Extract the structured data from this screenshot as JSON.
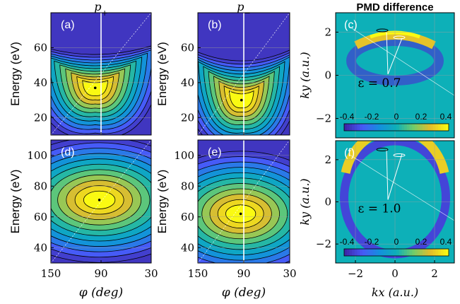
{
  "chart_data": [
    {
      "panel": "(a)",
      "type": "heatmap",
      "column_title": "p+",
      "xlabel": "",
      "ylabel": "Energy (eV)",
      "x_ticks": [
        "150",
        "90",
        "30"
      ],
      "y_ticks": [
        "20",
        "40",
        "60"
      ],
      "xlim": [
        150,
        30
      ],
      "ylim": [
        10,
        80
      ],
      "marker": {
        "phi": 97,
        "energy": 37
      },
      "vertical_line_phi": 90,
      "colormap": "parula",
      "contours": true
    },
    {
      "panel": "(b)",
      "type": "heatmap",
      "column_title": "p−",
      "xlabel": "",
      "ylabel": "Energy (eV)",
      "x_ticks": [
        "150",
        "90",
        "30"
      ],
      "y_ticks": [
        "20",
        "40",
        "60"
      ],
      "xlim": [
        150,
        30
      ],
      "ylim": [
        10,
        80
      ],
      "marker": {
        "phi": 93,
        "energy": 30
      },
      "vertical_line_phi": 90,
      "colormap": "parula",
      "contours": true
    },
    {
      "panel": "(c)",
      "type": "heatmap",
      "column_title": "PMD difference",
      "xlabel": "",
      "ylabel": "ky (a.u.)",
      "y_ticks": [
        "2",
        "0",
        "-2"
      ],
      "ylim": [
        -2.9,
        2.9
      ],
      "xlim": [
        -3,
        3
      ],
      "annotation": "ε = 0.7",
      "colorbar_ticks": [
        "-0.4",
        "-0.2",
        "0",
        "0.2",
        "0.4"
      ],
      "colormap": "parula"
    },
    {
      "panel": "(d)",
      "type": "heatmap",
      "xlabel": "φ (deg)",
      "ylabel": "Energy (eV)",
      "x_ticks": [
        "150",
        "90",
        "30"
      ],
      "y_ticks": [
        "40",
        "60",
        "80",
        "100"
      ],
      "xlim": [
        150,
        30
      ],
      "ylim": [
        30,
        110
      ],
      "marker": {
        "phi": 92,
        "energy": 71
      },
      "colormap": "parula",
      "contours": true
    },
    {
      "panel": "(e)",
      "type": "heatmap",
      "xlabel": "φ (deg)",
      "ylabel": "Energy (eV)",
      "x_ticks": [
        "150",
        "90",
        "30"
      ],
      "y_ticks": [
        "40",
        "60",
        "80",
        "100"
      ],
      "xlim": [
        150,
        30
      ],
      "ylim": [
        30,
        110
      ],
      "marker": {
        "phi": 94,
        "energy": 62
      },
      "vertical_line_phi": 90,
      "colormap": "parula",
      "contours": true
    },
    {
      "panel": "(f)",
      "type": "heatmap",
      "xlabel": "kx (a.u.)",
      "ylabel": "ky (a.u.)",
      "x_ticks": [
        "-2",
        "0",
        "2"
      ],
      "y_ticks": [
        "2",
        "0",
        "-2"
      ],
      "xlim": [
        -3,
        3
      ],
      "ylim": [
        -2.9,
        2.9
      ],
      "annotation": "ε = 1.0",
      "colorbar_ticks": [
        "-0.4",
        "-0.2",
        "0",
        "0.2",
        "0.4"
      ],
      "colormap": "parula"
    }
  ]
}
